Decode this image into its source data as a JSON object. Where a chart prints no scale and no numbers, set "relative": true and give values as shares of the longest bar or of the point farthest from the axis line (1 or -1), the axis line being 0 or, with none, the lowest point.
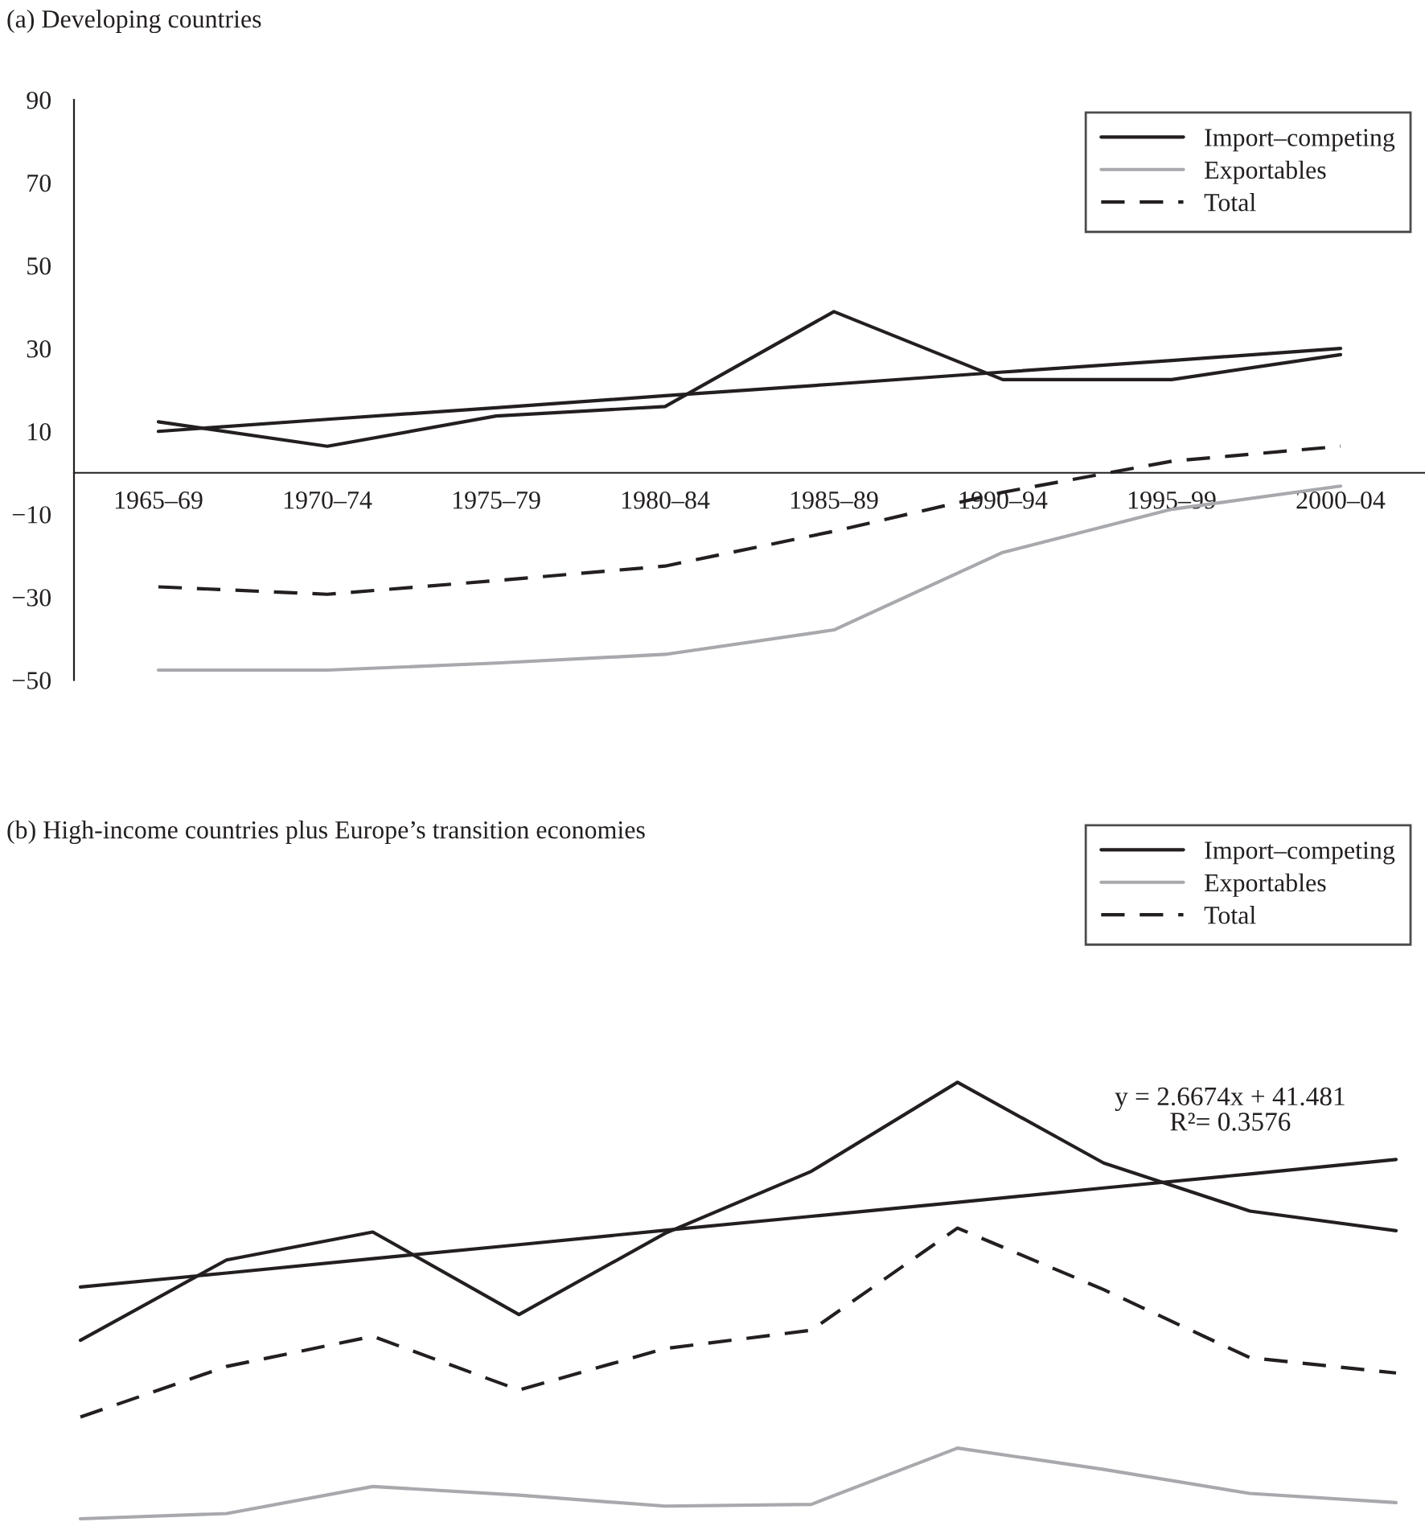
{
  "chart_data": [
    {
      "type": "line",
      "title": "(a) Developing countries",
      "categories": [
        "1965–69",
        "1970–74",
        "1975–79",
        "1980–84",
        "1985–89",
        "1990–94",
        "1995–99",
        "2000–04"
      ],
      "ylim": [
        -50,
        90
      ],
      "yticks": [
        {
          "value": -50,
          "label": "−50"
        },
        {
          "value": -30,
          "label": "−30"
        },
        {
          "value": -10,
          "label": "−10"
        },
        10,
        30,
        50,
        70,
        90
      ],
      "legend": "top right",
      "series": [
        {
          "name": "Import–competing",
          "color": "#231f20",
          "line_style": "solid",
          "values": [
            12.3,
            6.4,
            13.7,
            16,
            38.9,
            22.5,
            22.5,
            28.5
          ]
        },
        {
          "name": "Exportables",
          "color": "#a7a9ac",
          "line_style": "solid",
          "values": [
            -47.6,
            -47.6,
            -45.9,
            -43.8,
            -37.9,
            -19.2,
            -8.8,
            -3.2
          ]
        },
        {
          "name": "Total",
          "color": "#231f20",
          "line_style": "dashed",
          "values": [
            -27.5,
            -29.3,
            -26,
            -22.5,
            -14.1,
            -4.7,
            2.8,
            6.4
          ]
        },
        {
          "type": "line",
          "color": "#231f20",
          "line_style": "solid",
          "values": [
            10,
            12.9,
            15.7,
            18.6,
            21.4,
            24.3,
            27.1,
            30
          ]
        }
      ]
    },
    {
      "type": "line",
      "title": "(b) High-income countries plus Europe’s transition economies",
      "categories": [
        null,
        null,
        null,
        null,
        null,
        null,
        null,
        null,
        null,
        null
      ],
      "relative": true,
      "tick_labels": false,
      "legend": "top right",
      "annotations": [
        "y = 2.6674x + 41.481\nR²= 0.3576"
      ],
      "series": [
        {
          "name": "Import–competing",
          "color": "#231f20",
          "line_style": "solid",
          "values": [
            0.409,
            0.593,
            0.657,
            0.468,
            0.654,
            0.796,
            1.0,
            0.815,
            0.705,
            0.66
          ]
        },
        {
          "name": "Exportables",
          "color": "#a7a9ac",
          "line_style": "solid",
          "values": [
            0,
            0.012,
            0.074,
            0.054,
            0.029,
            0.033,
            0.162,
            0.113,
            0.058,
            0.037
          ]
        },
        {
          "name": "Total",
          "color": "#231f20",
          "line_style": "dashed",
          "values": [
            0.233,
            0.349,
            0.418,
            0.295,
            0.39,
            0.432,
            0.666,
            0.525,
            0.369,
            0.334
          ]
        },
        {
          "type": "line",
          "color": "#231f20",
          "line_style": "solid",
          "values": [
            0.531,
            0.563,
            0.596,
            0.628,
            0.661,
            0.693,
            0.725,
            0.758,
            0.79,
            0.823
          ]
        }
      ]
    }
  ]
}
